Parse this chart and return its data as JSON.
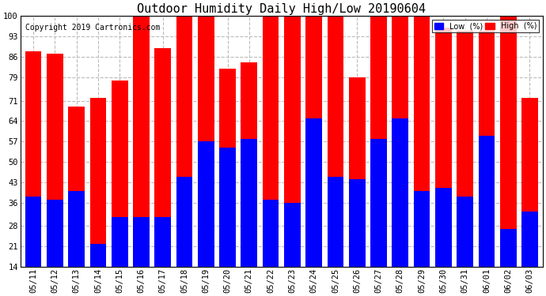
{
  "title": "Outdoor Humidity Daily High/Low 20190604",
  "copyright": "Copyright 2019 Cartronics.com",
  "dates": [
    "05/11",
    "05/12",
    "05/13",
    "05/14",
    "05/15",
    "05/16",
    "05/17",
    "05/18",
    "05/19",
    "05/20",
    "05/21",
    "05/22",
    "05/23",
    "05/24",
    "05/25",
    "05/26",
    "05/27",
    "05/28",
    "05/29",
    "05/30",
    "05/31",
    "06/01",
    "06/02",
    "06/03"
  ],
  "high": [
    88,
    87,
    69,
    72,
    78,
    100,
    89,
    100,
    100,
    82,
    84,
    100,
    100,
    100,
    100,
    79,
    100,
    100,
    100,
    96,
    95,
    95,
    100,
    72
  ],
  "low": [
    38,
    37,
    40,
    22,
    31,
    31,
    31,
    45,
    57,
    55,
    58,
    37,
    36,
    65,
    45,
    44,
    58,
    65,
    40,
    41,
    38,
    59,
    27,
    33
  ],
  "high_color": "#ff0000",
  "low_color": "#0000ff",
  "bg_color": "#ffffff",
  "grid_color": "#bbbbbb",
  "ymin": 14,
  "ymax": 100,
  "yticks": [
    14,
    21,
    28,
    36,
    43,
    50,
    57,
    64,
    71,
    79,
    86,
    93,
    100
  ],
  "title_fontsize": 11,
  "tick_fontsize": 7.5,
  "copyright_fontsize": 7,
  "legend_low_label": "Low  (%)",
  "legend_high_label": "High  (%)"
}
